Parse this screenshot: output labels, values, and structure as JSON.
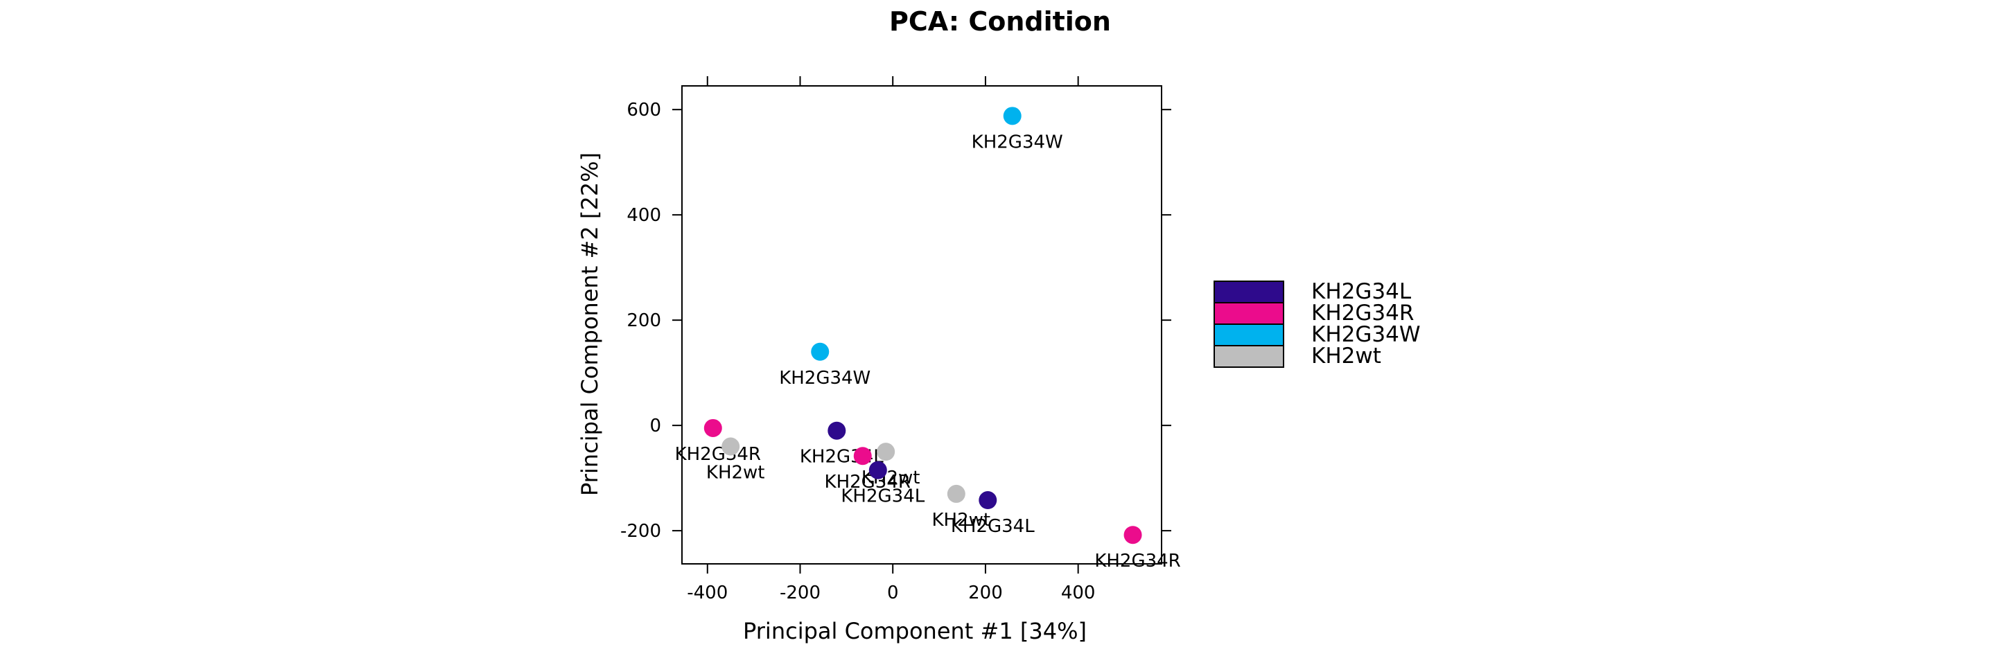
{
  "chart_data": {
    "type": "scatter",
    "title": "PCA: Condition",
    "xlabel": "Principal Component #1 [34%]",
    "ylabel": "Principal Component #2 [22%]",
    "xlim": [
      -455,
      580
    ],
    "ylim": [
      -263,
      645
    ],
    "xticks": [
      -400,
      -200,
      0,
      200,
      400
    ],
    "yticks": [
      -200,
      0,
      200,
      400,
      600
    ],
    "grid": false,
    "legend_position": "right",
    "legend": [
      {
        "label": "KH2G34L",
        "color": "#2E0A8C"
      },
      {
        "label": "KH2G34R",
        "color": "#EB0C8C"
      },
      {
        "label": "KH2G34W",
        "color": "#00B2EE"
      },
      {
        "label": "KH2wt",
        "color": "#BEBEBE"
      }
    ],
    "points": [
      {
        "x": 258,
        "y": 588,
        "group": "KH2G34W",
        "label": "KH2G34W"
      },
      {
        "x": -157,
        "y": 140,
        "group": "KH2G34W",
        "label": "KH2G34W"
      },
      {
        "x": -388,
        "y": -5,
        "group": "KH2G34R",
        "label": "KH2G34R"
      },
      {
        "x": -350,
        "y": -40,
        "group": "KH2wt",
        "label": "KH2wt"
      },
      {
        "x": -121,
        "y": -10,
        "group": "KH2G34L",
        "label": "KH2G34L"
      },
      {
        "x": -65,
        "y": -58,
        "group": "KH2G34R",
        "label": "KH2G34R"
      },
      {
        "x": -15,
        "y": -50,
        "group": "KH2wt",
        "label": "KH2wt"
      },
      {
        "x": -32,
        "y": -85,
        "group": "KH2G34L",
        "label": "KH2G34L"
      },
      {
        "x": 137,
        "y": -130,
        "group": "KH2wt",
        "label": "KH2wt"
      },
      {
        "x": 205,
        "y": -142,
        "group": "KH2G34L",
        "label": "KH2G34L"
      },
      {
        "x": 518,
        "y": -208,
        "group": "KH2G34R",
        "label": "KH2G34R"
      }
    ]
  }
}
